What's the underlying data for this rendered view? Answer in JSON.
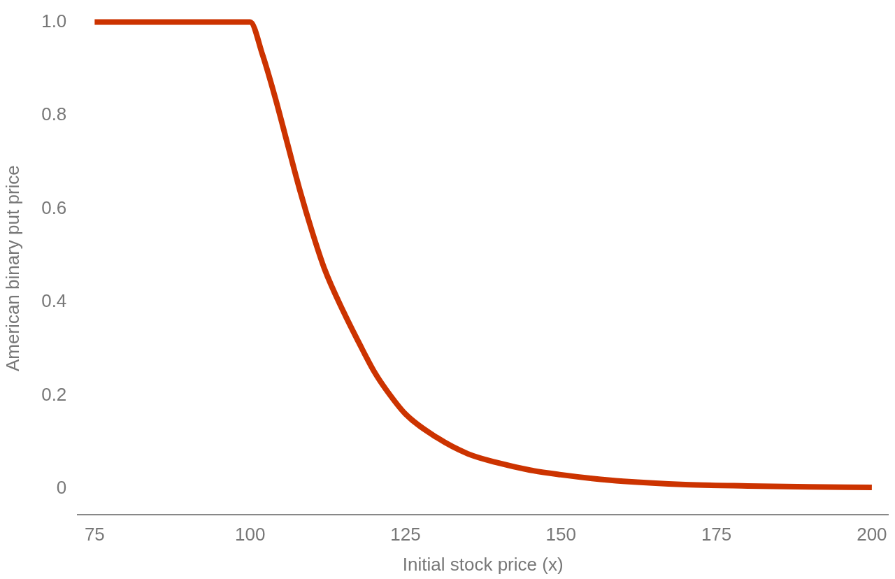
{
  "chart_data": {
    "type": "line",
    "xlabel": "Initial stock price (x)",
    "ylabel": "American binary put price",
    "series": [
      {
        "color": "#cc3300",
        "x": [
          75,
          100,
          102,
          104,
          106,
          108,
          110,
          112,
          115,
          118,
          120,
          122,
          125,
          130,
          135,
          140,
          145,
          150,
          155,
          160,
          170,
          180,
          190,
          200
        ],
        "values": [
          1.0,
          1.0,
          0.93,
          0.84,
          0.74,
          0.64,
          0.55,
          0.47,
          0.38,
          0.3,
          0.25,
          0.21,
          0.16,
          0.11,
          0.075,
          0.055,
          0.04,
          0.03,
          0.022,
          0.016,
          0.009,
          0.006,
          0.004,
          0.003
        ]
      }
    ],
    "xlim": [
      72.3,
      202.6
    ],
    "ylim": [
      -0.055,
      1
    ],
    "xticks": [
      75,
      100,
      125,
      150,
      175,
      200
    ],
    "yticks": [
      0,
      0.2,
      0.4,
      0.6,
      0.8,
      {
        "value": 1,
        "label": "1.0"
      }
    ],
    "grid": false,
    "legend": false,
    "marker": "none",
    "line_style": "solid"
  }
}
